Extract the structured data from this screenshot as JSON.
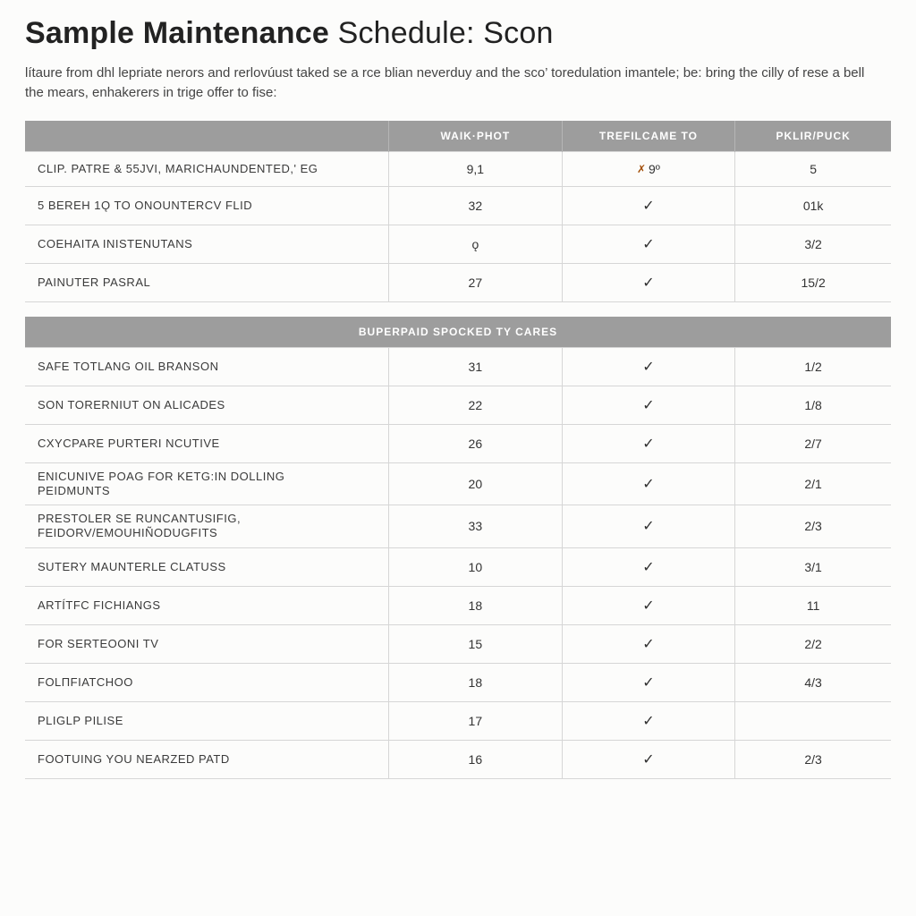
{
  "title": {
    "bold": "Sample Maintenance",
    "light_1": " Schedule:  ",
    "light_2": "Scon"
  },
  "intro": "lítaure from dhl lepriate nerors and rerlovúust taked se a rce blian neverduy and the sco’ toredulation imantele; be: bring the cilly of rese a bell the mears, enhakerers in trige offer to fise:",
  "table1": {
    "columns": [
      "",
      "WAIK·PHOT",
      "TREFILCAME TO",
      "PKLIR/PUCK"
    ],
    "rows": [
      {
        "name": "CLIP. PATRE & 55JVI, MARICHAUNDENTED,' EG",
        "c1": "9,1",
        "c2_x": true,
        "c2": "9º",
        "c3": "5"
      },
      {
        "name": "5 BEREH 1ǫ to onoUNTERCV FLID",
        "c1": "32",
        "c2_check": true,
        "c3": "01k"
      },
      {
        "name": "COEHAITA INISTENUTANS",
        "c1": "ǫ",
        "c2_check": true,
        "c3": "3/2"
      },
      {
        "name": "PAINUTER PASRAL",
        "c1": "27",
        "c2_check": true,
        "c3": "15/2"
      }
    ]
  },
  "table2": {
    "section_header": "BUPERPAID SPOCKED TY CARES",
    "rows": [
      {
        "name": "SAFE TOTLANG OIL BRANSON",
        "c1": "31",
        "c2_check": true,
        "c3": "1/2"
      },
      {
        "name": "SON TORERNIUT ON ALICADES",
        "c1": "22",
        "c2_check": true,
        "c3": "1/8"
      },
      {
        "name": "CXYCPARE PURTERI NCUTIVE",
        "c1": "26",
        "c2_check": true,
        "c3": "2/7"
      },
      {
        "name": "ENICUNIVE POAG FOR KETG:IN DOLLING",
        "name2": "PEIDMUNTS",
        "c1": "20",
        "c2_check": true,
        "c3": "2/1"
      },
      {
        "name": "PRESTOLER SE RUNCANTUSIfIG,",
        "name2": "FEIDORV/EMOUHIÑODUGFITS",
        "c1": "33",
        "c2_check": true,
        "c3": "2/3"
      },
      {
        "name": "SUTERY MAUNTERLE CLATUSS",
        "c1": "10",
        "c2_check": true,
        "c3": "3/1"
      },
      {
        "name": "ARTÍTFC FICHIANGS",
        "c1": "18",
        "c2_check": true,
        "c3": "11"
      },
      {
        "name": "FOR SERTEOONI TV",
        "c1": "15",
        "c2_check": true,
        "c3": "2/2"
      },
      {
        "name": "FOLΠFIATCHOO",
        "c1": "18",
        "c2_check": true,
        "c3": "4/3"
      },
      {
        "name": "PLIGLP PILISE",
        "c1": "17",
        "c2_check": true,
        "c3": ""
      },
      {
        "name": "FOOTUING YOU NEARZED PATD",
        "c1": "16",
        "c2_check": true,
        "c3": "2/3"
      }
    ]
  },
  "icons": {
    "check": "✓",
    "x": "✗"
  }
}
